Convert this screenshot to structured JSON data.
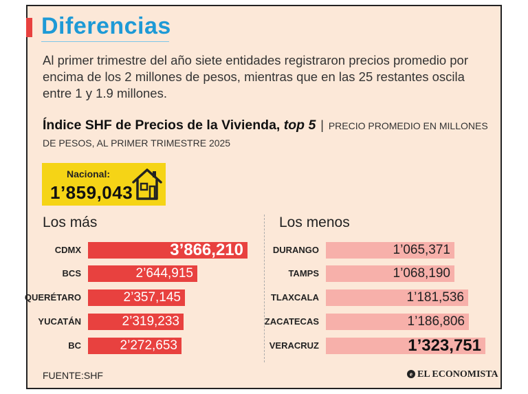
{
  "header": {
    "title": "Diferencias",
    "intro": "Al primer trimestre del año siete entidades registraron precios promedio por encima de los 2 millones de pesos, mientras que en las 25 restantes oscila entre 1 y 1.9 millones."
  },
  "chart_title": {
    "main_prefix": "Índice SHF de Precios de la Vivienda, ",
    "main_emph": "top 5",
    "separator": "|",
    "detail": "PRECIO PROMEDIO EN MILLONES DE PESOS, AL PRIMER TRIMESTRE 2025"
  },
  "national": {
    "label": "Nacional:",
    "value_text": "1’859,043",
    "icon": "house-icon"
  },
  "colors": {
    "accent_red": "#e8413f",
    "title_blue": "#1e9ad6",
    "background": "#fce8d8",
    "highlight_yellow": "#f5d416",
    "bar_dark": "#e8413f",
    "bar_light": "#f7b0aa"
  },
  "chart_data": [
    {
      "type": "bar",
      "title": "Los más",
      "orientation": "horizontal",
      "categories": [
        "CDMX",
        "BCS",
        "QUERÉTARO",
        "YUCATÁN",
        "BC"
      ],
      "values": [
        3866210,
        2644915,
        2357145,
        2319233,
        2272653
      ],
      "labels": [
        "3’866,210",
        "2’644,915",
        "2’357,145",
        "2’319,233",
        "2’272,653"
      ],
      "color": "#e8413f"
    },
    {
      "type": "bar",
      "title": "Los menos",
      "orientation": "horizontal",
      "categories": [
        "DURANGO",
        "TAMPS",
        "TLAXCALA",
        "ZACATECAS",
        "VERACRUZ"
      ],
      "values": [
        1065371,
        1068190,
        1181536,
        1186806,
        1323751
      ],
      "labels": [
        "1’065,371",
        "1’068,190",
        "1’181,536",
        "1’186,806",
        "1’323,751"
      ],
      "color": "#f7b0aa"
    }
  ],
  "footer": {
    "source": "FUENTE:SHF",
    "brand_mark": "e",
    "brand": "EL ECONOMISTA"
  }
}
